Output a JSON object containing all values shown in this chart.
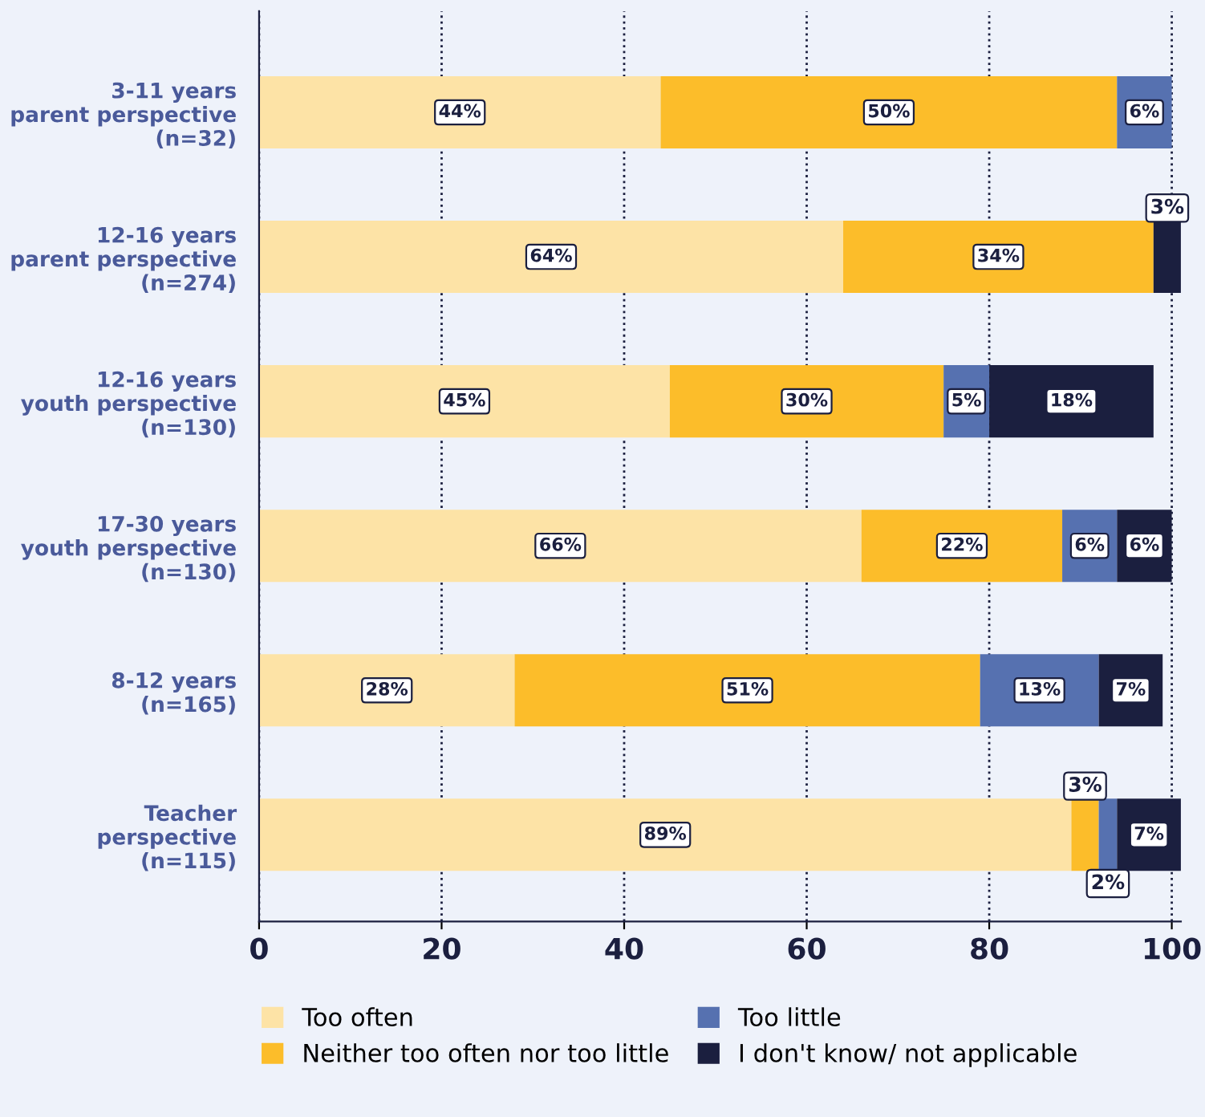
{
  "chart_data": {
    "type": "bar",
    "orientation": "horizontal",
    "stacked": true,
    "categories": [
      "3-11 years\nparent perspective\n(n=32)",
      "12-16 years\nparent perspective\n(n=274)",
      "12-16 years\nyouth perspective\n(n=130)",
      "17-30 years\nyouth perspective\n(n=130)",
      "8-12 years\n(n=165)",
      "Teacher\nperspective\n(n=115)"
    ],
    "series": [
      {
        "name": "Too often",
        "color": "#fde3a6",
        "values": [
          44,
          64,
          45,
          66,
          28,
          89
        ],
        "value_labels": [
          "44%",
          "64%",
          "45%",
          "66%",
          "28%",
          "89%"
        ]
      },
      {
        "name": "Neither too often nor too little",
        "color": "#fcbd2a",
        "values": [
          50,
          34,
          30,
          22,
          51,
          3
        ],
        "value_labels": [
          "50%",
          "34%",
          "30%",
          "22%",
          "51%",
          "3%"
        ]
      },
      {
        "name": "Too little",
        "color": "#5671b0",
        "values": [
          6,
          null,
          5,
          6,
          13,
          2
        ],
        "value_labels": [
          "6%",
          null,
          "5%",
          "6%",
          "13%",
          "2%"
        ]
      },
      {
        "name": "I don't know/ not applicable",
        "color": "#1b1f3f",
        "values": [
          null,
          3,
          18,
          6,
          7,
          7
        ],
        "value_labels": [
          null,
          "3%",
          "18%",
          "6%",
          "7%",
          "7%"
        ]
      }
    ],
    "xlim": [
      0,
      101
    ],
    "xticks": [
      0,
      20,
      40,
      60,
      80,
      100
    ],
    "grid": "x",
    "legend": "bottom"
  }
}
